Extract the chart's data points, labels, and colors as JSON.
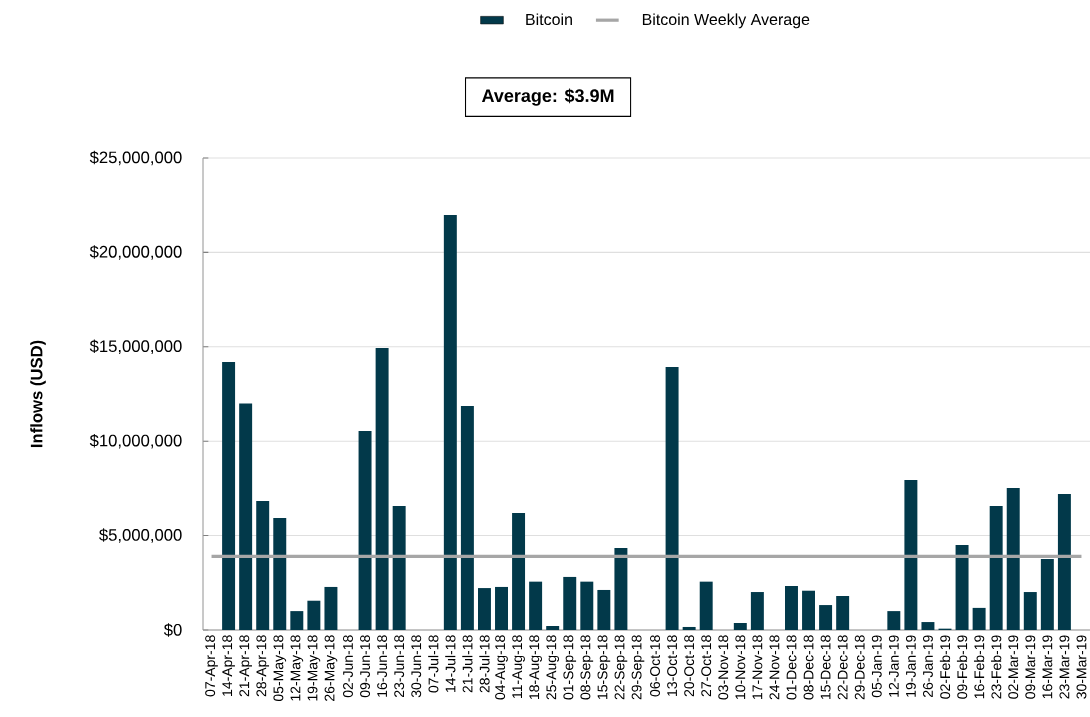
{
  "chart_data": {
    "type": "bar",
    "categories": [
      "07-Apr-18",
      "14-Apr-18",
      "21-Apr-18",
      "28-Apr-18",
      "05-May-18",
      "12-May-18",
      "19-May-18",
      "26-May-18",
      "02-Jun-18",
      "09-Jun-18",
      "16-Jun-18",
      "23-Jun-18",
      "30-Jun-18",
      "07-Jul-18",
      "14-Jul-18",
      "21-Jul-18",
      "28-Jul-18",
      "04-Aug-18",
      "11-Aug-18",
      "18-Aug-18",
      "25-Aug-18",
      "01-Sep-18",
      "08-Sep-18",
      "15-Sep-18",
      "22-Sep-18",
      "29-Sep-18",
      "06-Oct-18",
      "13-Oct-18",
      "20-Oct-18",
      "27-Oct-18",
      "03-Nov-18",
      "10-Nov-18",
      "17-Nov-18",
      "24-Nov-18",
      "01-Dec-18",
      "08-Dec-18",
      "15-Dec-18",
      "22-Dec-18",
      "29-Dec-18",
      "05-Jan-19",
      "12-Jan-19",
      "19-Jan-19",
      "26-Jan-19",
      "02-Feb-19",
      "09-Feb-19",
      "16-Feb-19",
      "23-Feb-19",
      "02-Mar-19",
      "09-Mar-19",
      "16-Mar-19",
      "23-Mar-19",
      "30-Mar-19"
    ],
    "series": [
      {
        "name": "Bitcoin",
        "color": "#02394a",
        "values": [
          0,
          14200000,
          12000000,
          6830000,
          5930000,
          1000000,
          1550000,
          2280000,
          0,
          10540000,
          14940000,
          6570000,
          0,
          0,
          21980000,
          11860000,
          2220000,
          2280000,
          6200000,
          2560000,
          210000,
          2810000,
          2560000,
          2120000,
          4340000,
          0,
          0,
          13930000,
          160000,
          2560000,
          0,
          370000,
          2010000,
          0,
          2330000,
          2080000,
          1320000,
          1800000,
          0,
          0,
          1000000,
          7940000,
          420000,
          70000,
          4500000,
          1170000,
          6570000,
          7520000,
          2010000,
          3760000,
          7200000,
          0
        ]
      },
      {
        "name": "Bitcoin Weekly Average",
        "type": "line",
        "color": "#a6a6a6",
        "values": [
          3900000,
          3900000,
          3900000,
          3900000,
          3900000,
          3900000,
          3900000,
          3900000,
          3900000,
          3900000,
          3900000,
          3900000,
          3900000,
          3900000,
          3900000,
          3900000,
          3900000,
          3900000,
          3900000,
          3900000,
          3900000,
          3900000,
          3900000,
          3900000,
          3900000,
          3900000,
          3900000,
          3900000,
          3900000,
          3900000,
          3900000,
          3900000,
          3900000,
          3900000,
          3900000,
          3900000,
          3900000,
          3900000,
          3900000,
          3900000,
          3900000,
          3900000,
          3900000,
          3900000,
          3900000,
          3900000,
          3900000,
          3900000,
          3900000,
          3900000,
          3900000,
          3900000
        ]
      }
    ],
    "ylabel": "Inflows (USD)",
    "annotations": [
      "Average: $3.9M"
    ],
    "ylim": [
      0,
      25000000
    ],
    "yticks": [
      {
        "value": 0,
        "label": "$0"
      },
      {
        "value": 5000000,
        "label": "$5,000,000"
      },
      {
        "value": 10000000,
        "label": "$10,000,000"
      },
      {
        "value": 15000000,
        "label": "$15,000,000"
      },
      {
        "value": 20000000,
        "label": "$20,000,000"
      },
      {
        "value": 25000000,
        "label": "$25,000,000"
      }
    ],
    "grid": "y",
    "legend": "top"
  }
}
